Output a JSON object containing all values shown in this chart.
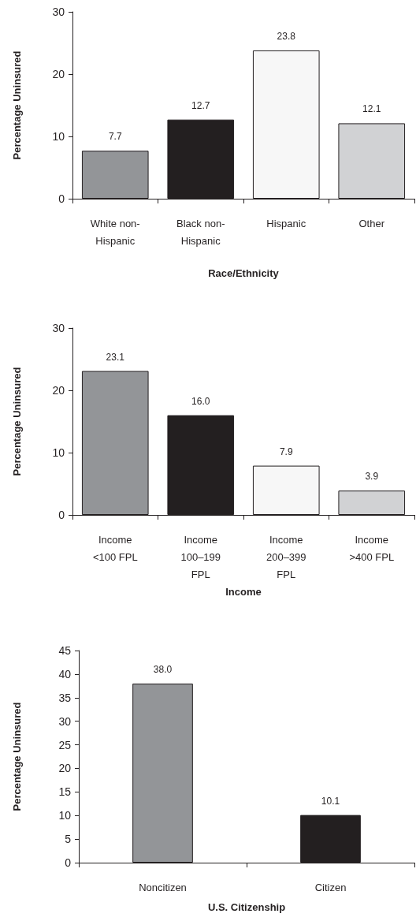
{
  "chart_data": [
    {
      "type": "bar",
      "xlabel": "Race/Ethnicity",
      "ylabel": "Percentage Uninsured",
      "categories": [
        "White non-\nHispanic",
        "Black non-\nHispanic",
        "Hispanic",
        "Other"
      ],
      "values": [
        7.7,
        12.7,
        23.8,
        12.1
      ],
      "colors": [
        "#939598",
        "#231f20",
        "#f7f7f7",
        "#d1d2d4"
      ],
      "value_labels": [
        "7.7",
        "12.7",
        "23.8",
        "12.1"
      ],
      "ylim": [
        0,
        30
      ],
      "yticks": [
        0,
        10,
        20,
        30
      ],
      "grid": false
    },
    {
      "type": "bar",
      "xlabel": "Income",
      "ylabel": "Percentage Uninsured",
      "categories": [
        "Income\n<100 FPL",
        "Income\n100–199\nFPL",
        "Income\n200–399\nFPL",
        "Income\n>400 FPL"
      ],
      "values": [
        23.1,
        16.0,
        7.9,
        3.9
      ],
      "colors": [
        "#939598",
        "#231f20",
        "#f7f7f7",
        "#d1d2d4"
      ],
      "value_labels": [
        "23.1",
        "16.0",
        "7.9",
        "3.9"
      ],
      "ylim": [
        0,
        30
      ],
      "yticks": [
        0,
        10,
        20,
        30
      ],
      "grid": false
    },
    {
      "type": "bar",
      "xlabel": "U.S. Citizenship",
      "ylabel": "Percentage Uninsured",
      "categories": [
        "Noncitizen",
        "Citizen"
      ],
      "values": [
        38.0,
        10.1
      ],
      "colors": [
        "#939598",
        "#231f20"
      ],
      "value_labels": [
        "38.0",
        "10.1"
      ],
      "ylim": [
        0,
        45
      ],
      "yticks": [
        0,
        5,
        10,
        15,
        20,
        25,
        30,
        35,
        40,
        45
      ],
      "grid": false
    }
  ]
}
